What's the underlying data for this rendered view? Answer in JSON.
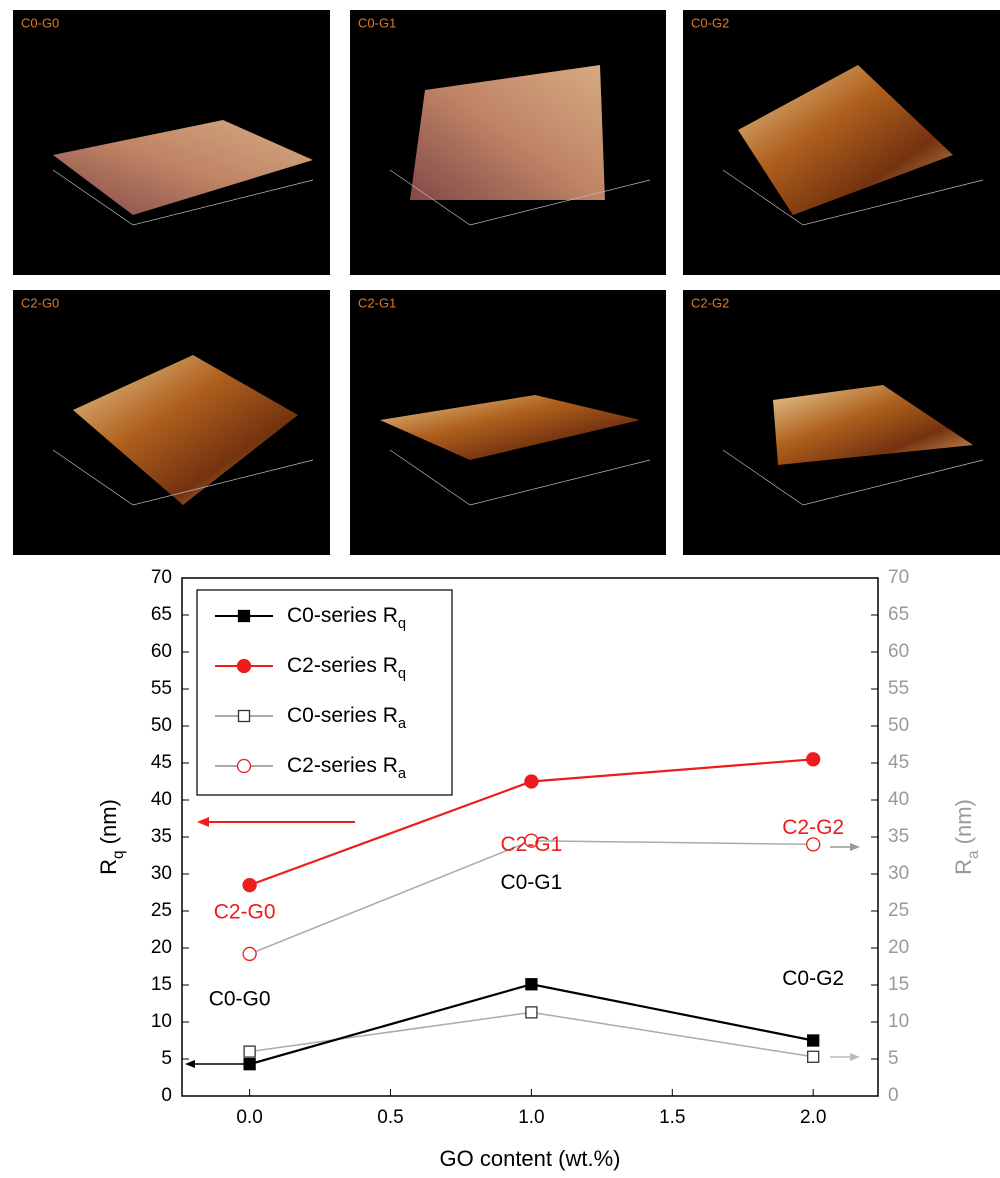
{
  "images": [
    {
      "label": "C0-G0"
    },
    {
      "label": "C0-G1"
    },
    {
      "label": "C0-G2"
    },
    {
      "label": "C2-G0"
    },
    {
      "label": "C2-G1"
    },
    {
      "label": "C2-G2"
    }
  ],
  "chart_data": {
    "type": "line",
    "x_label": "GO content (wt.%)",
    "y_label": "Rq (nm)",
    "y2_label": "Ra (nm)",
    "x": [
      0,
      1,
      2
    ],
    "xlim": [
      -0.24,
      2.23
    ],
    "xticks": [
      {
        "value": 0,
        "label": "0.0"
      },
      {
        "value": 0.5,
        "label": "0.5"
      },
      {
        "value": 1,
        "label": "1.0"
      },
      {
        "value": 1.5,
        "label": "1.5"
      },
      {
        "value": 2,
        "label": "2.0"
      }
    ],
    "ylim": [
      0,
      70
    ],
    "yticks": [
      0,
      5,
      10,
      15,
      20,
      25,
      30,
      35,
      40,
      45,
      50,
      55,
      60,
      65,
      70
    ],
    "y2lim": [
      0,
      70
    ],
    "y2ticks": [
      0,
      5,
      10,
      15,
      20,
      25,
      30,
      35,
      40,
      45,
      50,
      55,
      60,
      65,
      70
    ],
    "legend": "upper left",
    "series": [
      {
        "name": "C0-series Rq",
        "color": "#000000",
        "marker": "square",
        "filled": true,
        "values": [
          4.3,
          15.1,
          7.5
        ],
        "point_labels": [
          "C0-G0",
          "C0-G1",
          "C0-G2"
        ]
      },
      {
        "name": "C2-series Rq",
        "color": "#ee1c1c",
        "marker": "circle",
        "filled": true,
        "values": [
          28.5,
          42.5,
          45.5
        ],
        "point_labels": [
          "C2-G0",
          "C2-G1",
          "C2-G2"
        ]
      },
      {
        "name": "C0-series Ra",
        "color": "#333333",
        "line_color": "#aaaaaa",
        "marker": "square",
        "filled": false,
        "axis": "y2",
        "values": [
          6.0,
          11.3,
          5.3
        ]
      },
      {
        "name": "C2-series Ra",
        "color": "#ee1c1c",
        "line_color": "#aaaaaa",
        "marker": "circle",
        "filled": false,
        "axis": "y2",
        "values": [
          19.2,
          34.5,
          34.0
        ]
      }
    ]
  }
}
